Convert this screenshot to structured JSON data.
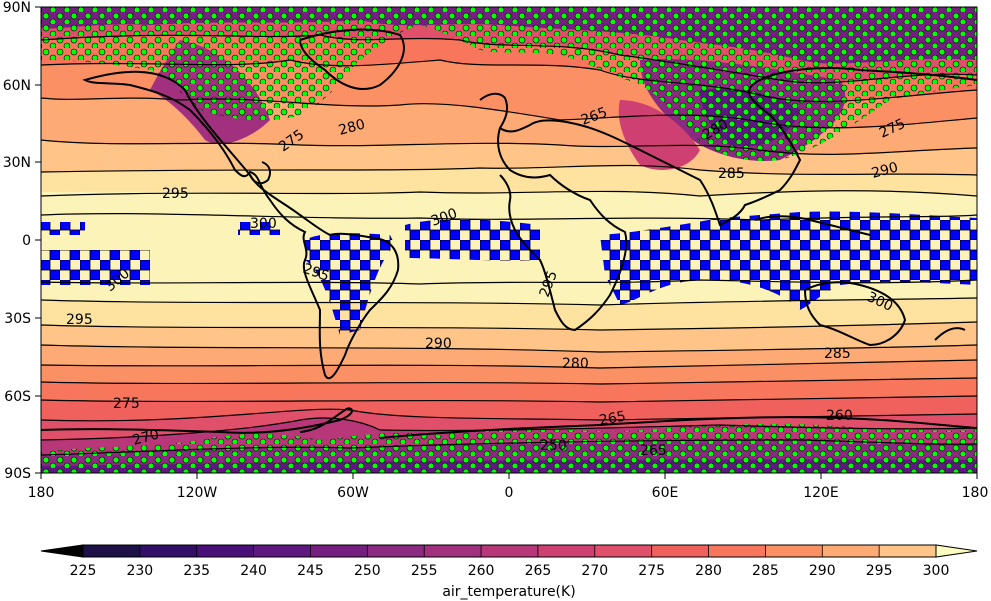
{
  "map": {
    "projection": "cylindrical",
    "lon_range": [
      -180,
      180
    ],
    "lat_range": [
      -90,
      90
    ],
    "lon_ticks": [
      "180",
      "120W",
      "60W",
      "0",
      "60E",
      "120E",
      "180"
    ],
    "lat_ticks": [
      "90N",
      "60N",
      "30N",
      "0",
      "30S",
      "60S",
      "90S"
    ],
    "stipple_color": "#00ff00",
    "hatch_color": "#0000ff"
  },
  "contour_labels": [
    "275",
    "280",
    "295",
    "300",
    "295",
    "300",
    "265",
    "280",
    "285",
    "275",
    "290",
    "300",
    "295",
    "300",
    "295",
    "290",
    "280",
    "285",
    "275",
    "265",
    "260",
    "270",
    "265",
    "250"
  ],
  "colorbar": {
    "levels": [
      "225",
      "230",
      "235",
      "240",
      "245",
      "250",
      "255",
      "260",
      "265",
      "270",
      "275",
      "280",
      "285",
      "290",
      "295",
      "300"
    ],
    "colors": [
      "#0b0722",
      "#1d1147",
      "#331067",
      "#4a1079",
      "#5f187f",
      "#751f81",
      "#8c2981",
      "#a1307e",
      "#b73779",
      "#cd4071",
      "#e1506b",
      "#f0605d",
      "#f8765c",
      "#fc9065",
      "#feaa74",
      "#fec488",
      "#fde2a0",
      "#fcf3b8"
    ],
    "title": "air_temperature(K)"
  }
}
